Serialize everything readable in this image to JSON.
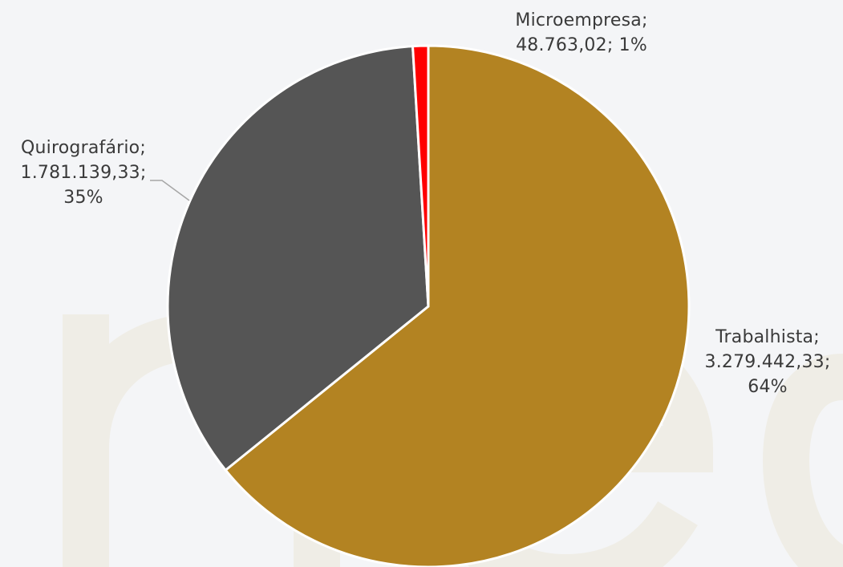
{
  "chart_data": {
    "type": "pie",
    "title": "",
    "slices": [
      {
        "name": "Trabalhista",
        "value": 3279442.33,
        "value_label": "3.279.442,33",
        "percent_label": "64%",
        "color": "#b38322"
      },
      {
        "name": "Quirografário",
        "value": 1781139.33,
        "value_label": "1.781.139,33",
        "percent_label": "35%",
        "color": "#555555"
      },
      {
        "name": "Microempresa",
        "value": 48763.02,
        "value_label": "48.763,02",
        "percent_label": "1%",
        "color": "#ff0000"
      }
    ],
    "legend": "none",
    "data_labels": "outside",
    "slice_border_color": "#ffffff"
  },
  "labels": {
    "microempresa": {
      "line1": "Microempresa;",
      "line2": "48.763,02; 1%"
    },
    "quirografario": {
      "line1": "Quirografário;",
      "line2": "1.781.139,33;",
      "line3": "35%"
    },
    "trabalhista": {
      "line1": "Trabalhista;",
      "line2": "3.279.442,33;",
      "line3": "64%"
    }
  },
  "colors": {
    "background": "#f4f5f7",
    "watermark": "#efede6",
    "label_text": "#3a3a3a",
    "leader_line": "#a6a6a6"
  }
}
